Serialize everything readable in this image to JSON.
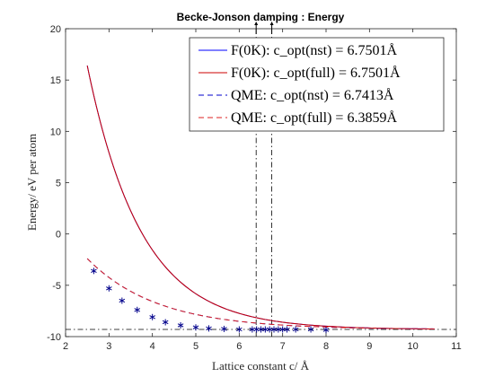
{
  "chart_data": {
    "type": "line",
    "title": "Becke-Jonson damping : Energy",
    "xlabel": "Lattice constant c/ Å",
    "ylabel": "Energy/ eV per atom",
    "xlim": [
      2,
      11
    ],
    "ylim": [
      -10,
      20
    ],
    "xticks": [
      2,
      3,
      4,
      5,
      6,
      7,
      8,
      9,
      10,
      11
    ],
    "yticks": [
      -10,
      -5,
      0,
      5,
      10,
      15,
      20
    ],
    "grid": false,
    "legend_position": "top-right",
    "series": [
      {
        "name": "F(0K): c_opt(nst) = 6.7501Å",
        "color": "#0000ff",
        "style": "solid",
        "model": {
          "form": "exp_decay",
          "E0": -9.3,
          "A": 25.7,
          "k": 0.8,
          "x0": 2.5
        },
        "x_range": [
          2.5,
          10.5
        ]
      },
      {
        "name": "F(0K): c_opt(full) = 6.7501Å",
        "color": "#cc0000",
        "style": "solid",
        "model": {
          "form": "exp_decay",
          "E0": -9.3,
          "A": 25.7,
          "k": 0.8,
          "x0": 2.5
        },
        "x_range": [
          2.5,
          10.5
        ]
      },
      {
        "name": "QME: c_opt(nst) = 6.7413Å",
        "color": "#0000cc",
        "style": "dashed",
        "model": {
          "form": "exp_decay",
          "E0": -9.3,
          "A": 6.9,
          "k": 0.62,
          "x0": 2.5
        },
        "x_range": [
          2.5,
          10.5
        ]
      },
      {
        "name": "QME: c_opt(full) = 6.3859Å",
        "color": "#dd2222",
        "style": "dashed",
        "model": {
          "form": "exp_decay",
          "E0": -9.3,
          "A": 6.9,
          "k": 0.62,
          "x0": 2.5
        },
        "x_range": [
          2.5,
          10.5
        ]
      }
    ],
    "markers": {
      "symbol": "*",
      "color": "#00008b",
      "x": [
        2.65,
        3.0,
        3.3,
        3.65,
        4.0,
        4.3,
        4.65,
        5.0,
        5.3,
        5.65,
        6.0,
        6.3,
        6.4,
        6.5,
        6.6,
        6.7,
        6.8,
        6.9,
        7.0,
        7.1,
        7.3,
        7.65,
        8.0
      ],
      "y": [
        -3.6,
        -5.3,
        -6.5,
        -7.4,
        -8.1,
        -8.6,
        -8.9,
        -9.1,
        -9.2,
        -9.25,
        -9.3,
        -9.3,
        -9.3,
        -9.3,
        -9.3,
        -9.3,
        -9.3,
        -9.3,
        -9.3,
        -9.3,
        -9.3,
        -9.3,
        -9.35
      ]
    },
    "reference_lines": {
      "vertical_x": [
        6.39,
        6.75
      ],
      "horizontal_y": -9.3,
      "style": "dash-dot"
    },
    "top_markers_x": [
      6.39,
      6.75
    ]
  }
}
